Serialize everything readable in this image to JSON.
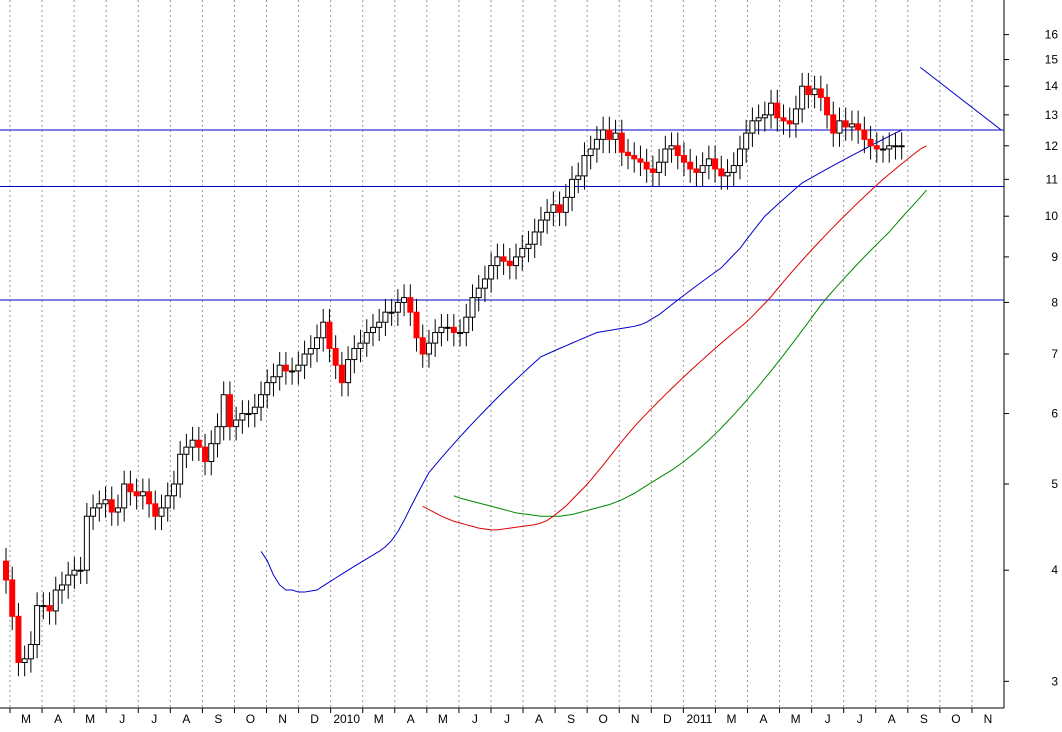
{
  "chart_data": {
    "type": "candlestick",
    "title": "",
    "xlabel": "",
    "ylabel": "",
    "y_scale": "log",
    "ylim": [
      2.8,
      17.5
    ],
    "y_ticks": [
      "3",
      "4",
      "5",
      "6",
      "7",
      "8",
      "9",
      "10",
      "11",
      "12",
      "13",
      "14",
      "15",
      "16"
    ],
    "x_ticks": [
      "M",
      "A",
      "M",
      "J",
      "J",
      "A",
      "S",
      "O",
      "N",
      "D",
      "2010",
      "M",
      "A",
      "M",
      "J",
      "J",
      "A",
      "S",
      "O",
      "N",
      "D",
      "2011",
      "M",
      "A",
      "M",
      "J",
      "J",
      "A",
      "S",
      "O",
      "N"
    ],
    "grid": true,
    "colors": {
      "up_candle": "#ffffff",
      "down_candle": "#ff0000",
      "wick": "#000000",
      "ma_short": "#0000cc",
      "ma_medium": "#dd0000",
      "ma_long": "#008800",
      "horizontal_lines": "#0000cc",
      "grid": "#999999"
    },
    "horizontal_levels": [
      12.5,
      10.8,
      8.05
    ],
    "trendline": [
      {
        "week": 147,
        "value": 14.7
      },
      {
        "week": 160,
        "value": 12.5
      }
    ],
    "weeks": 160,
    "closes": [
      3.9,
      3.55,
      3.15,
      3.18,
      3.3,
      3.65,
      3.65,
      3.6,
      3.8,
      3.85,
      3.95,
      4.0,
      4.0,
      4.6,
      4.7,
      4.75,
      4.8,
      4.65,
      4.7,
      5.0,
      4.9,
      4.85,
      4.9,
      4.75,
      4.6,
      4.7,
      4.85,
      5.0,
      5.4,
      5.5,
      5.6,
      5.5,
      5.3,
      5.55,
      5.8,
      6.3,
      5.8,
      5.9,
      6.0,
      6.0,
      6.1,
      6.3,
      6.5,
      6.6,
      6.8,
      6.7,
      6.7,
      6.8,
      7.0,
      7.1,
      7.3,
      7.6,
      7.1,
      6.8,
      6.5,
      6.9,
      7.1,
      7.2,
      7.4,
      7.5,
      7.6,
      7.8,
      7.8,
      8.0,
      8.1,
      7.8,
      7.3,
      7.0,
      7.2,
      7.4,
      7.5,
      7.5,
      7.4,
      7.4,
      7.7,
      8.1,
      8.3,
      8.5,
      8.8,
      9.0,
      8.9,
      8.8,
      9.0,
      9.2,
      9.3,
      9.6,
      9.9,
      10.1,
      10.3,
      10.1,
      10.5,
      11.0,
      11.1,
      11.7,
      11.9,
      12.2,
      12.5,
      12.2,
      12.4,
      11.8,
      11.7,
      11.6,
      11.5,
      11.3,
      11.2,
      11.5,
      11.9,
      12.0,
      11.7,
      11.5,
      11.3,
      11.2,
      11.4,
      11.6,
      11.3,
      11.1,
      11.2,
      11.4,
      11.9,
      12.4,
      12.8,
      12.9,
      13.0,
      13.4,
      12.9,
      12.8,
      12.7,
      13.2,
      14.0,
      13.7,
      13.9,
      13.6,
      13.0,
      12.4,
      12.8,
      12.6,
      12.7,
      12.5,
      12.2,
      12.0,
      11.9,
      11.9,
      12.0,
      12.0,
      12.0,
      12.0,
      12.0,
      12.0,
      12.0,
      12.0,
      12.0,
      12.0,
      12.0,
      12.0,
      12.0,
      12.0,
      12.0,
      12.0
    ],
    "drawn_candles": 145,
    "ma_short": [
      4.2,
      4.1,
      3.95,
      3.85,
      3.8,
      3.8,
      3.78,
      3.78,
      3.79,
      3.8,
      3.84,
      3.88,
      3.92,
      3.96,
      4.0,
      4.04,
      4.08,
      4.12,
      4.16,
      4.2,
      4.25,
      4.32,
      4.42,
      4.55,
      4.7,
      4.85,
      5.0,
      5.15,
      5.25,
      5.35,
      5.45,
      5.55,
      5.65,
      5.75,
      5.85,
      5.95,
      6.05,
      6.15,
      6.25,
      6.35,
      6.45,
      6.55,
      6.65,
      6.75,
      6.85,
      6.95,
      7.0,
      7.05,
      7.1,
      7.15,
      7.2,
      7.25,
      7.3,
      7.35,
      7.4,
      7.42,
      7.44,
      7.46,
      7.48,
      7.5,
      7.52,
      7.55,
      7.6,
      7.68,
      7.75,
      7.85,
      7.95,
      8.05,
      8.15,
      8.25,
      8.35,
      8.45,
      8.55,
      8.65,
      8.75,
      8.9,
      9.05,
      9.2,
      9.4,
      9.6,
      9.8,
      10.0,
      10.15,
      10.3,
      10.45,
      10.6,
      10.75,
      10.9,
      11.0,
      11.1,
      11.2,
      11.3,
      11.4,
      11.5,
      11.6,
      11.7,
      11.8,
      11.9,
      12.0,
      12.1,
      12.2,
      12.3,
      12.4,
      12.5
    ],
    "ma_short_start": 0,
    "ma_medium": [
      4.72,
      4.68,
      4.64,
      4.6,
      4.57,
      4.54,
      4.52,
      4.5,
      4.48,
      4.46,
      4.45,
      4.44,
      4.44,
      4.45,
      4.46,
      4.47,
      4.48,
      4.49,
      4.5,
      4.52,
      4.55,
      4.6,
      4.66,
      4.72,
      4.8,
      4.88,
      4.96,
      5.05,
      5.15,
      5.25,
      5.36,
      5.47,
      5.58,
      5.69,
      5.8,
      5.9,
      6.0,
      6.1,
      6.2,
      6.3,
      6.4,
      6.5,
      6.6,
      6.7,
      6.8,
      6.9,
      7.0,
      7.1,
      7.2,
      7.3,
      7.4,
      7.5,
      7.6,
      7.72,
      7.85,
      7.98,
      8.12,
      8.28,
      8.44,
      8.6,
      8.76,
      8.92,
      9.08,
      9.24,
      9.4,
      9.56,
      9.72,
      9.88,
      10.04,
      10.2,
      10.36,
      10.52,
      10.68,
      10.84,
      11.0,
      11.15,
      11.3,
      11.45,
      11.6,
      11.75,
      11.9,
      12.0
    ],
    "ma_long": [
      4.85,
      4.82,
      4.8,
      4.78,
      4.76,
      4.74,
      4.72,
      4.7,
      4.68,
      4.66,
      4.64,
      4.63,
      4.62,
      4.61,
      4.6,
      4.6,
      4.6,
      4.6,
      4.61,
      4.62,
      4.64,
      4.66,
      4.68,
      4.7,
      4.72,
      4.74,
      4.77,
      4.8,
      4.84,
      4.88,
      4.93,
      4.98,
      5.03,
      5.08,
      5.13,
      5.18,
      5.24,
      5.3,
      5.37,
      5.44,
      5.52,
      5.6,
      5.69,
      5.78,
      5.88,
      5.98,
      6.09,
      6.2,
      6.32,
      6.44,
      6.57,
      6.7,
      6.84,
      6.98,
      7.13,
      7.28,
      7.44,
      7.6,
      7.77,
      7.94,
      8.1,
      8.25,
      8.4,
      8.55,
      8.7,
      8.85,
      9.0,
      9.15,
      9.3,
      9.45,
      9.6,
      9.78,
      9.96,
      10.14,
      10.32,
      10.5,
      10.7
    ]
  }
}
